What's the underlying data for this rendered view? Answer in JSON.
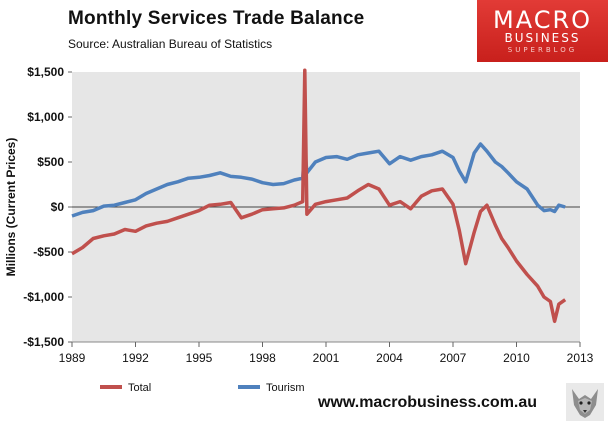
{
  "title": "Monthly  Services Trade  Balance",
  "source": "Source:  Australian Bureau of Statistics",
  "logo": {
    "line1": "MACRO",
    "line2": "BUSINESS",
    "line3": "SUPERBLOG"
  },
  "footer_url": "www.macrobusiness.com.au",
  "colors": {
    "total": "#c0504d",
    "tourism": "#4f81bd",
    "plot_bg": "#e6e6e6",
    "logo_red": "#d42a25"
  },
  "chart_data": {
    "type": "line",
    "title": "Monthly  Services Trade  Balance",
    "ylabel": "Millions (Current Prices)",
    "xlabel": "",
    "xlim": [
      1989,
      2013
    ],
    "ylim": [
      -1500,
      1500
    ],
    "x_ticks": [
      "1989",
      "1992",
      "1995",
      "1998",
      "2001",
      "2004",
      "2007",
      "2010",
      "2013"
    ],
    "y_ticks": [
      "$1,500",
      "$1,000",
      "$500",
      "$0",
      "-$500",
      "-$1,000",
      "-$1,500"
    ],
    "legend_position": "bottom",
    "grid": false,
    "series": [
      {
        "name": "Total",
        "color": "#c0504d",
        "x": [
          1989.0,
          1989.5,
          1990.0,
          1990.5,
          1991.0,
          1991.5,
          1992.0,
          1992.5,
          1993.0,
          1993.5,
          1994.0,
          1994.5,
          1995.0,
          1995.5,
          1996.0,
          1996.5,
          1997.0,
          1997.5,
          1998.0,
          1998.5,
          1999.0,
          1999.5,
          1999.9,
          2000.0,
          2000.1,
          2000.5,
          2001.0,
          2001.5,
          2002.0,
          2002.5,
          2003.0,
          2003.5,
          2004.0,
          2004.5,
          2005.0,
          2005.5,
          2006.0,
          2006.5,
          2007.0,
          2007.3,
          2007.6,
          2008.0,
          2008.3,
          2008.6,
          2009.0,
          2009.3,
          2009.6,
          2010.0,
          2010.5,
          2011.0,
          2011.3,
          2011.6,
          2011.8,
          2012.0,
          2012.3
        ],
        "values": [
          -520,
          -450,
          -350,
          -320,
          -300,
          -250,
          -270,
          -210,
          -180,
          -160,
          -120,
          -80,
          -40,
          20,
          30,
          50,
          -120,
          -80,
          -30,
          -20,
          -10,
          20,
          60,
          1520,
          -80,
          30,
          60,
          80,
          100,
          180,
          250,
          200,
          20,
          60,
          -20,
          120,
          180,
          200,
          30,
          -260,
          -630,
          -280,
          -50,
          20,
          -200,
          -350,
          -450,
          -600,
          -750,
          -880,
          -1000,
          -1050,
          -1270,
          -1080,
          -1030
        ]
      },
      {
        "name": "Tourism",
        "color": "#4f81bd",
        "x": [
          1989.0,
          1989.5,
          1990.0,
          1990.5,
          1991.0,
          1991.5,
          1992.0,
          1992.5,
          1993.0,
          1993.5,
          1994.0,
          1994.5,
          1995.0,
          1995.5,
          1996.0,
          1996.5,
          1997.0,
          1997.5,
          1998.0,
          1998.5,
          1999.0,
          1999.5,
          1999.9,
          2000.0,
          2000.1,
          2000.5,
          2001.0,
          2001.5,
          2002.0,
          2002.5,
          2003.0,
          2003.5,
          2004.0,
          2004.5,
          2005.0,
          2005.5,
          2006.0,
          2006.5,
          2007.0,
          2007.3,
          2007.6,
          2008.0,
          2008.3,
          2008.6,
          2009.0,
          2009.3,
          2009.6,
          2010.0,
          2010.5,
          2011.0,
          2011.3,
          2011.6,
          2011.8,
          2012.0,
          2012.3
        ],
        "values": [
          -100,
          -60,
          -40,
          10,
          20,
          50,
          80,
          150,
          200,
          250,
          280,
          320,
          330,
          350,
          380,
          340,
          330,
          310,
          270,
          250,
          260,
          300,
          320,
          650,
          380,
          500,
          550,
          560,
          530,
          580,
          600,
          620,
          480,
          560,
          520,
          560,
          580,
          620,
          550,
          400,
          280,
          600,
          700,
          620,
          500,
          450,
          380,
          280,
          200,
          20,
          -40,
          -30,
          -50,
          20,
          0
        ]
      }
    ]
  }
}
